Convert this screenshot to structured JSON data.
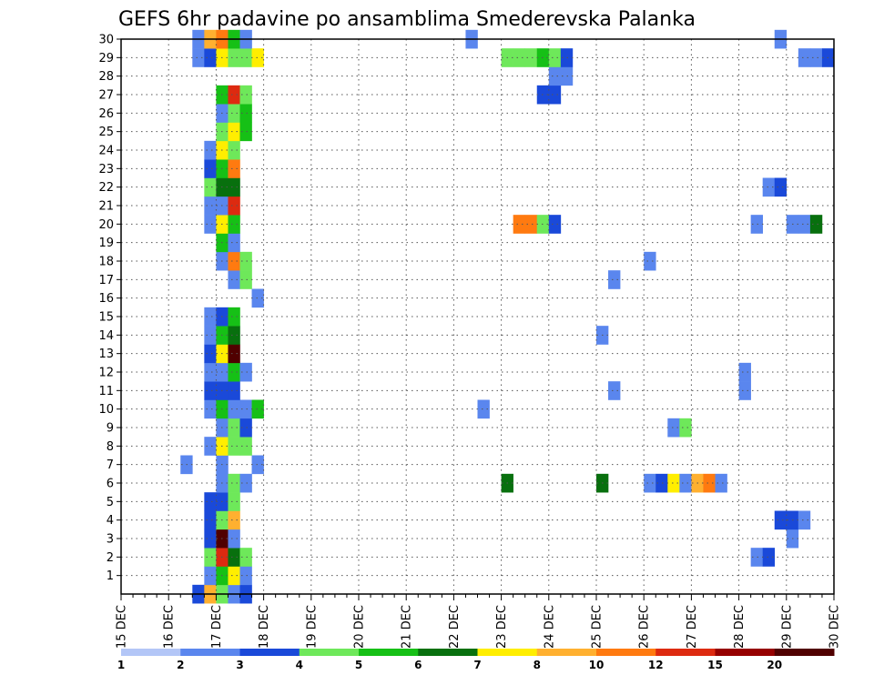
{
  "chart_data": {
    "type": "heatmap",
    "title": "GEFS 6hr padavine po ansamblima Smederevska Palanka",
    "x_tick_labels": [
      "15 DEC",
      "16 DEC",
      "17 DEC",
      "18 DEC",
      "19 DEC",
      "20 DEC",
      "21 DEC",
      "22 DEC",
      "23 DEC",
      "24 DEC",
      "25 DEC",
      "26 DEC",
      "27 DEC",
      "28 DEC",
      "29 DEC",
      "30 DEC"
    ],
    "y_tick_labels": [
      "1",
      "2",
      "3",
      "4",
      "5",
      "6",
      "7",
      "8",
      "9",
      "10",
      "11",
      "12",
      "13",
      "14",
      "15",
      "16",
      "17",
      "18",
      "19",
      "20",
      "21",
      "22",
      "23",
      "24",
      "25",
      "26",
      "27",
      "28",
      "29",
      "30"
    ],
    "xlim": [
      0,
      60
    ],
    "ylim": [
      0,
      30
    ],
    "grid": true,
    "legend_position": "bottom",
    "legend": {
      "levels": [
        "1",
        "2",
        "3",
        "4",
        "5",
        "6",
        "7",
        "8",
        "10",
        "12",
        "15",
        "20"
      ],
      "colors": [
        "#b3c6f7",
        "#5a86ee",
        "#1a49d9",
        "#6ee85a",
        "#16c016",
        "#08700e",
        "#ffee00",
        "#ffb030",
        "#ff7a10",
        "#dd2a10",
        "#960000",
        "#500000"
      ]
    },
    "cells": [
      [
        6,
        0,
        2
      ],
      [
        7,
        0,
        7
      ],
      [
        8,
        0,
        3
      ],
      [
        9,
        0,
        1
      ],
      [
        10,
        0,
        2
      ],
      [
        7,
        1,
        1
      ],
      [
        8,
        1,
        4
      ],
      [
        9,
        1,
        6
      ],
      [
        10,
        1,
        1
      ],
      [
        7,
        2,
        3
      ],
      [
        8,
        2,
        9
      ],
      [
        9,
        2,
        5
      ],
      [
        10,
        2,
        3
      ],
      [
        7,
        3,
        2
      ],
      [
        8,
        3,
        11
      ],
      [
        9,
        3,
        1
      ],
      [
        7,
        4,
        2
      ],
      [
        8,
        4,
        3
      ],
      [
        9,
        4,
        7
      ],
      [
        7,
        5,
        2
      ],
      [
        8,
        5,
        2
      ],
      [
        9,
        5,
        3
      ],
      [
        8,
        6,
        1
      ],
      [
        9,
        6,
        3
      ],
      [
        10,
        6,
        1
      ],
      [
        32,
        6,
        5
      ],
      [
        40,
        6,
        5
      ],
      [
        44,
        6,
        1
      ],
      [
        45,
        6,
        2
      ],
      [
        46,
        6,
        6
      ],
      [
        47,
        6,
        1
      ],
      [
        48,
        6,
        7
      ],
      [
        49,
        6,
        8
      ],
      [
        50,
        6,
        1
      ],
      [
        53,
        2,
        1
      ],
      [
        54,
        2,
        2
      ],
      [
        56,
        3,
        1
      ],
      [
        55,
        4,
        2
      ],
      [
        56,
        4,
        2
      ],
      [
        57,
        4,
        1
      ],
      [
        5,
        7,
        1
      ],
      [
        11,
        7,
        1
      ],
      [
        8,
        7,
        1
      ],
      [
        7,
        8,
        1
      ],
      [
        8,
        8,
        6
      ],
      [
        9,
        8,
        3
      ],
      [
        10,
        8,
        3
      ],
      [
        8,
        9,
        1
      ],
      [
        9,
        9,
        3
      ],
      [
        10,
        9,
        2
      ],
      [
        46,
        9,
        1
      ],
      [
        47,
        9,
        3
      ],
      [
        7,
        10,
        1
      ],
      [
        8,
        10,
        4
      ],
      [
        9,
        10,
        1
      ],
      [
        10,
        10,
        1
      ],
      [
        11,
        10,
        4
      ],
      [
        30,
        10,
        1
      ],
      [
        41,
        11,
        1
      ],
      [
        52,
        11,
        1
      ],
      [
        52,
        12,
        1
      ],
      [
        7,
        11,
        2
      ],
      [
        8,
        11,
        2
      ],
      [
        9,
        11,
        2
      ],
      [
        7,
        12,
        1
      ],
      [
        8,
        12,
        1
      ],
      [
        9,
        12,
        4
      ],
      [
        10,
        12,
        1
      ],
      [
        7,
        13,
        2
      ],
      [
        8,
        13,
        6
      ],
      [
        9,
        13,
        11
      ],
      [
        7,
        14,
        1
      ],
      [
        8,
        14,
        4
      ],
      [
        9,
        14,
        5
      ],
      [
        40,
        14,
        1
      ],
      [
        7,
        15,
        1
      ],
      [
        8,
        15,
        2
      ],
      [
        9,
        15,
        4
      ],
      [
        11,
        16,
        1
      ],
      [
        9,
        17,
        1
      ],
      [
        10,
        17,
        3
      ],
      [
        41,
        17,
        1
      ],
      [
        8,
        18,
        1
      ],
      [
        9,
        18,
        8
      ],
      [
        10,
        18,
        3
      ],
      [
        44,
        18,
        1
      ],
      [
        8,
        19,
        4
      ],
      [
        9,
        19,
        1
      ],
      [
        7,
        20,
        1
      ],
      [
        8,
        20,
        6
      ],
      [
        9,
        20,
        4
      ],
      [
        33,
        20,
        8
      ],
      [
        34,
        20,
        8
      ],
      [
        35,
        20,
        3
      ],
      [
        36,
        20,
        2
      ],
      [
        53,
        20,
        1
      ],
      [
        56,
        20,
        1
      ],
      [
        57,
        20,
        1
      ],
      [
        58,
        20,
        5
      ],
      [
        7,
        21,
        1
      ],
      [
        8,
        21,
        1
      ],
      [
        9,
        21,
        9
      ],
      [
        7,
        22,
        3
      ],
      [
        8,
        22,
        5
      ],
      [
        9,
        22,
        5
      ],
      [
        54,
        22,
        1
      ],
      [
        55,
        22,
        2
      ],
      [
        7,
        23,
        2
      ],
      [
        8,
        23,
        4
      ],
      [
        9,
        23,
        8
      ],
      [
        7,
        24,
        1
      ],
      [
        8,
        24,
        6
      ],
      [
        9,
        24,
        3
      ],
      [
        8,
        25,
        3
      ],
      [
        9,
        25,
        6
      ],
      [
        10,
        25,
        4
      ],
      [
        8,
        26,
        1
      ],
      [
        9,
        26,
        3
      ],
      [
        10,
        26,
        4
      ],
      [
        8,
        27,
        4
      ],
      [
        9,
        27,
        9
      ],
      [
        10,
        27,
        3
      ],
      [
        35,
        27,
        2
      ],
      [
        36,
        27,
        2
      ],
      [
        36,
        28,
        1
      ],
      [
        37,
        28,
        1
      ],
      [
        6,
        29,
        1
      ],
      [
        7,
        29,
        2
      ],
      [
        8,
        29,
        6
      ],
      [
        9,
        29,
        3
      ],
      [
        10,
        29,
        3
      ],
      [
        11,
        29,
        6
      ],
      [
        32,
        29,
        3
      ],
      [
        33,
        29,
        3
      ],
      [
        34,
        29,
        3
      ],
      [
        35,
        29,
        4
      ],
      [
        36,
        29,
        3
      ],
      [
        37,
        29,
        2
      ],
      [
        57,
        29,
        1
      ],
      [
        58,
        29,
        1
      ],
      [
        59,
        29,
        2
      ],
      [
        6,
        30,
        1
      ],
      [
        7,
        30,
        7
      ],
      [
        8,
        30,
        8
      ],
      [
        9,
        30,
        4
      ],
      [
        10,
        30,
        1
      ],
      [
        29,
        30,
        1
      ],
      [
        55,
        30,
        1
      ]
    ]
  }
}
